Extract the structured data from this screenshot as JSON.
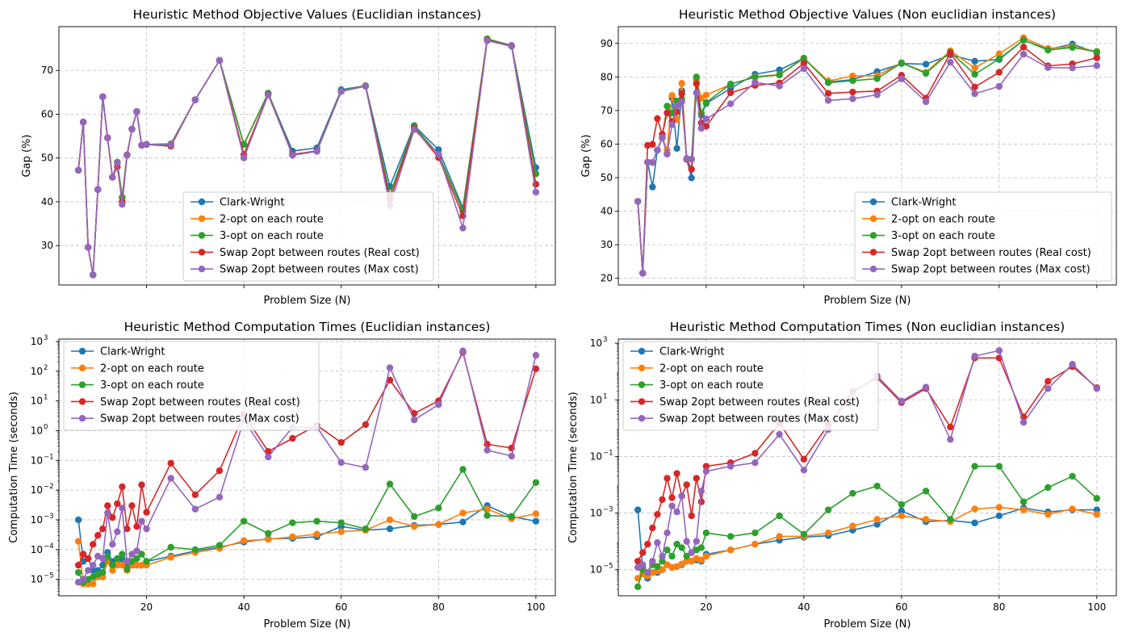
{
  "chart_data": [
    {
      "type": "line",
      "title": "Heuristic Method Objective Values (Euclidian instances)",
      "xlabel": "Problem Size (N)",
      "ylabel": "Gap (%)",
      "show_x_ticklabels": false,
      "xlim": [
        2,
        104
      ],
      "ylim": [
        21,
        80
      ],
      "yscale": "linear",
      "yticks": [
        30,
        40,
        50,
        60,
        70
      ],
      "ytick_labels": [
        "30",
        "40",
        "50",
        "60",
        "70"
      ],
      "xticks": [
        20,
        40,
        60,
        80,
        100
      ],
      "xtick_labels": [
        "",
        "",
        "",
        "",
        ""
      ],
      "grid": true,
      "legend": "lower-center",
      "x": [
        6,
        7,
        8,
        9,
        10,
        11,
        12,
        13,
        14,
        15,
        16,
        17,
        18,
        19,
        20,
        25,
        30,
        35,
        40,
        45,
        50,
        55,
        60,
        65,
        70,
        75,
        80,
        85,
        90,
        95,
        100
      ],
      "series": [
        {
          "name": "Clark-Wright",
          "color": "#1f77b4",
          "values": [
            47.2,
            58.2,
            29.6,
            23.3,
            42.8,
            64.0,
            54.6,
            45.6,
            49.0,
            41.0,
            50.7,
            56.6,
            60.6,
            52.9,
            53.1,
            53.2,
            63.3,
            72.3,
            53.1,
            64.8,
            51.6,
            52.3,
            65.6,
            66.5,
            43.5,
            57.4,
            51.9,
            38.6,
            77.2,
            75.7,
            47.8
          ]
        },
        {
          "name": "2-opt on each route",
          "color": "#ff7f0e",
          "values": [
            47.2,
            58.2,
            29.6,
            23.3,
            42.8,
            64.0,
            54.6,
            45.6,
            49.0,
            41.0,
            50.7,
            56.6,
            60.6,
            52.9,
            53.1,
            53.2,
            63.3,
            72.3,
            53.1,
            64.8,
            50.8,
            51.6,
            65.4,
            66.5,
            41.6,
            57.2,
            50.8,
            37.9,
            77.2,
            75.6,
            46.4
          ]
        },
        {
          "name": "3-opt on each route",
          "color": "#2ca02c",
          "values": [
            47.2,
            58.2,
            29.6,
            23.3,
            42.8,
            64.0,
            54.6,
            45.6,
            49.0,
            41.0,
            50.7,
            56.6,
            60.6,
            52.9,
            53.1,
            53.2,
            63.3,
            72.3,
            53.1,
            64.8,
            50.8,
            51.6,
            65.4,
            66.5,
            41.6,
            57.2,
            50.8,
            37.9,
            77.2,
            75.6,
            46.4
          ]
        },
        {
          "name": "Swap 2opt between routes (Real cost)",
          "color": "#d62728",
          "values": [
            47.2,
            58.2,
            29.6,
            23.3,
            42.8,
            64.0,
            54.6,
            45.6,
            48.0,
            40.0,
            50.7,
            56.6,
            60.6,
            52.9,
            53.1,
            52.7,
            63.3,
            72.3,
            50.8,
            64.5,
            50.8,
            51.6,
            65.2,
            66.4,
            40.5,
            56.8,
            50.1,
            36.8,
            76.9,
            75.6,
            44.0
          ]
        },
        {
          "name": "Swap 2opt between routes (Max cost)",
          "color": "#9467bd",
          "values": [
            47.2,
            58.2,
            29.6,
            23.3,
            42.8,
            64.0,
            54.6,
            45.6,
            48.9,
            39.4,
            50.6,
            56.6,
            60.6,
            52.9,
            53.1,
            53.0,
            63.3,
            72.3,
            50.0,
            64.4,
            50.6,
            51.5,
            65.2,
            66.4,
            39.1,
            56.5,
            50.8,
            34.0,
            76.8,
            75.5,
            42.2
          ]
        }
      ]
    },
    {
      "type": "line",
      "title": "Heuristic Method Objective Values (Non euclidian instances)",
      "xlabel": "Problem Size (N)",
      "ylabel": "Gap (%)",
      "show_x_ticklabels": false,
      "xlim": [
        2,
        104
      ],
      "ylim": [
        18,
        95
      ],
      "yscale": "linear",
      "yticks": [
        20,
        30,
        40,
        50,
        60,
        70,
        80,
        90
      ],
      "ytick_labels": [
        "20",
        "30",
        "40",
        "50",
        "60",
        "70",
        "80",
        "90"
      ],
      "xticks": [
        20,
        40,
        60,
        80,
        100
      ],
      "xtick_labels": [
        "",
        "",
        "",
        "",
        ""
      ],
      "grid": true,
      "legend": "lower-right",
      "x": [
        6,
        7,
        8,
        9,
        10,
        11,
        12,
        13,
        14,
        15,
        16,
        17,
        18,
        19,
        20,
        25,
        30,
        35,
        40,
        45,
        50,
        55,
        60,
        65,
        70,
        75,
        80,
        85,
        90,
        95,
        100
      ],
      "series": [
        {
          "name": "Clark-Wright",
          "color": "#1f77b4",
          "values": [
            42.9,
            21.5,
            54.6,
            47.2,
            58.2,
            61.8,
            57.2,
            73.8,
            58.7,
            75.9,
            55.5,
            49.9,
            79.1,
            68.6,
            72.1,
            76.6,
            80.8,
            82.1,
            85.6,
            78.5,
            79.2,
            81.6,
            84.0,
            83.8,
            86.6,
            84.7,
            85.2,
            91.0,
            88.2,
            89.8,
            87.2
          ]
        },
        {
          "name": "2-opt on each route",
          "color": "#ff7f0e",
          "values": [
            42.9,
            21.5,
            54.6,
            54.5,
            58.2,
            62.0,
            58.2,
            74.5,
            67.3,
            78.1,
            55.5,
            55.5,
            79.3,
            73.7,
            74.6,
            77.8,
            80.1,
            80.7,
            85.6,
            78.8,
            80.3,
            80.4,
            84.2,
            81.4,
            87.8,
            82.7,
            86.9,
            91.7,
            88.5,
            89.1,
            87.6
          ]
        },
        {
          "name": "3-opt on each route",
          "color": "#2ca02c",
          "values": [
            42.9,
            21.5,
            54.6,
            54.5,
            58.2,
            62.0,
            71.3,
            69.2,
            72.8,
            73.5,
            55.5,
            55.5,
            80.0,
            69.2,
            72.4,
            77.9,
            79.9,
            80.6,
            85.6,
            78.3,
            78.9,
            79.5,
            84.2,
            81.1,
            87.4,
            80.8,
            85.4,
            91.0,
            88.0,
            88.8,
            87.5
          ]
        },
        {
          "name": "Swap 2opt between routes (Real cost)",
          "color": "#d62728",
          "values": [
            42.9,
            21.5,
            59.6,
            59.9,
            67.6,
            62.9,
            69.3,
            66.8,
            69.6,
            75.0,
            55.5,
            52.5,
            78.0,
            66.3,
            65.3,
            75.3,
            77.5,
            78.2,
            84.1,
            75.1,
            75.5,
            75.8,
            80.5,
            73.7,
            87.1,
            77.0,
            81.4,
            88.9,
            83.3,
            83.9,
            85.7
          ]
        },
        {
          "name": "Swap 2opt between routes (Max cost)",
          "color": "#9467bd",
          "values": [
            42.9,
            21.5,
            54.6,
            54.5,
            58.2,
            62.0,
            57.0,
            65.8,
            71.4,
            72.6,
            55.7,
            55.5,
            75.3,
            64.7,
            67.5,
            72.0,
            78.4,
            77.3,
            82.5,
            73.0,
            73.5,
            74.7,
            79.4,
            72.6,
            84.4,
            75.0,
            77.2,
            86.8,
            82.8,
            82.7,
            83.4
          ]
        }
      ]
    },
    {
      "type": "line",
      "title": "Heuristic Method Computation Times (Euclidian instances)",
      "xlabel": "Problem Size (N)",
      "ylabel": "Computation Time (seconds)",
      "show_x_ticklabels": true,
      "xlim": [
        2,
        104
      ],
      "ylim": [
        2.8e-06,
        1200
      ],
      "yscale": "log",
      "yticks": [
        1e-05,
        0.0001,
        0.001,
        0.01,
        0.1,
        1,
        10,
        100,
        1000
      ],
      "ytick_labels": [
        "10",
        "10",
        "10",
        "10",
        "10",
        "10",
        "10",
        "10",
        "10"
      ],
      "ytick_exponents": [
        "−5",
        "−4",
        "−3",
        "−2",
        "−1",
        "0",
        "1",
        "2",
        "3"
      ],
      "xticks": [
        20,
        40,
        60,
        80,
        100
      ],
      "xtick_labels": [
        "20",
        "40",
        "60",
        "80",
        "100"
      ],
      "grid": true,
      "legend": "upper-left",
      "x": [
        6,
        7,
        8,
        9,
        10,
        11,
        12,
        13,
        14,
        15,
        16,
        17,
        18,
        19,
        20,
        25,
        30,
        35,
        40,
        45,
        50,
        55,
        60,
        65,
        70,
        75,
        80,
        85,
        90,
        95,
        100
      ],
      "series": [
        {
          "name": "Clark-Wright",
          "color": "#1f77b4",
          "values": [
            0.001,
            4e-05,
            5e-05,
            2e-05,
            2e-05,
            3e-05,
            8e-05,
            4e-05,
            3e-05,
            5e-05,
            3e-05,
            3e-05,
            3e-05,
            3e-05,
            4e-05,
            6e-05,
            9e-05,
            0.00012,
            0.00018,
            0.00023,
            0.00024,
            0.00027,
            0.0006,
            0.00045,
            0.0005,
            0.00065,
            0.0007,
            0.00085,
            0.003,
            0.0013,
            0.0009
          ]
        },
        {
          "name": "2-opt on each route",
          "color": "#ff7f0e",
          "values": [
            0.00019,
            7e-06,
            7e-06,
            7e-06,
            1.2e-05,
            1.2e-05,
            4e-05,
            2e-05,
            3e-05,
            3e-05,
            2e-05,
            3e-05,
            3e-05,
            3e-05,
            3e-05,
            5.5e-05,
            8e-05,
            0.00011,
            0.0002,
            0.00022,
            0.00027,
            0.00033,
            0.0004,
            0.00045,
            0.001,
            0.0006,
            0.0007,
            0.0017,
            0.0023,
            0.0011,
            0.0016
          ]
        },
        {
          "name": "3-opt on each route",
          "color": "#2ca02c",
          "values": [
            1.7e-05,
            8e-06,
            1e-05,
            1.2e-05,
            1.5e-05,
            1.7e-05,
            6e-05,
            3e-05,
            5e-05,
            7e-05,
            2.2e-05,
            4e-05,
            5e-05,
            7e-05,
            4e-05,
            0.00012,
            0.0001,
            0.00014,
            0.0009,
            0.00035,
            0.0008,
            0.0009,
            0.0008,
            0.0005,
            0.016,
            0.0013,
            0.0025,
            0.05,
            0.0014,
            0.0013,
            0.018
          ]
        },
        {
          "name": "Swap 2opt between routes (Real cost)",
          "color": "#d62728",
          "values": [
            3e-05,
            7e-05,
            5e-05,
            0.00015,
            0.0003,
            0.0005,
            0.003,
            0.0012,
            0.0035,
            0.013,
            0.0005,
            0.003,
            0.0006,
            0.015,
            0.0018,
            0.08,
            0.007,
            0.045,
            3.5,
            0.2,
            0.55,
            1.5,
            0.4,
            1.6,
            50,
            3.8,
            10,
            430,
            0.35,
            0.26,
            120
          ]
        },
        {
          "name": "Swap 2opt between routes (Max cost)",
          "color": "#9467bd",
          "values": [
            8e-06,
            1e-05,
            2e-05,
            3e-05,
            6e-05,
            5e-05,
            0.0017,
            0.00015,
            0.0004,
            0.0025,
            4e-05,
            7e-05,
            9e-05,
            0.0009,
            0.0005,
            0.025,
            0.0023,
            0.0058,
            2.3,
            0.13,
            1.3,
            1.3,
            0.085,
            0.058,
            130,
            2.3,
            7.5,
            480,
            0.22,
            0.14,
            340
          ]
        }
      ]
    },
    {
      "type": "line",
      "title": "Heuristic Method Computation Times (Non euclidian instances)",
      "xlabel": "Problem Size (N)",
      "ylabel": "Computation Time (seconds)",
      "show_x_ticklabels": true,
      "xlim": [
        2,
        104
      ],
      "ylim": [
        1.2e-06,
        1400
      ],
      "yscale": "log",
      "yticks": [
        1e-05,
        0.001,
        0.1,
        10,
        1000
      ],
      "ytick_labels": [
        "10",
        "10",
        "10",
        "10",
        "10"
      ],
      "ytick_exponents": [
        "−5",
        "−3",
        "−1",
        "1",
        "3"
      ],
      "xticks": [
        20,
        40,
        60,
        80,
        100
      ],
      "xtick_labels": [
        "20",
        "40",
        "60",
        "80",
        "100"
      ],
      "grid": true,
      "legend": "upper-left",
      "x": [
        6,
        7,
        8,
        9,
        10,
        11,
        12,
        13,
        14,
        15,
        16,
        17,
        18,
        19,
        20,
        25,
        30,
        35,
        40,
        45,
        50,
        55,
        60,
        65,
        70,
        75,
        80,
        85,
        90,
        95,
        100
      ],
      "series": [
        {
          "name": "Clark-Wright",
          "color": "#1f77b4",
          "values": [
            0.0013,
            1.2e-05,
            5e-06,
            8e-06,
            8e-06,
            1e-05,
            1.5e-05,
            1.2e-05,
            1.3e-05,
            1.5e-05,
            2e-05,
            2e-05,
            2.2e-05,
            2e-05,
            3.5e-05,
            5e-05,
            8e-05,
            0.00011,
            0.00014,
            0.00016,
            0.00025,
            0.0004,
            0.0012,
            0.0005,
            0.00055,
            0.00045,
            0.0008,
            0.0015,
            0.0011,
            0.0013,
            0.0013
          ]
        },
        {
          "name": "2-opt on each route",
          "color": "#ff7f0e",
          "values": [
            5e-06,
            7e-06,
            6e-06,
            8e-06,
            9e-06,
            1e-05,
            1.5e-05,
            1.2e-05,
            1.3e-05,
            1.6e-05,
            2e-05,
            2e-05,
            2.5e-05,
            2.2e-05,
            3e-05,
            5e-05,
            8e-05,
            0.00015,
            0.00015,
            0.0002,
            0.00035,
            0.0006,
            0.0008,
            0.0006,
            0.0005,
            0.0014,
            0.0016,
            0.0013,
            0.0009,
            0.0014,
            0.0009
          ]
        },
        {
          "name": "3-opt on each route",
          "color": "#2ca02c",
          "values": [
            2.5e-06,
            1e-05,
            8e-06,
            1.5e-05,
            1.3e-05,
            2e-05,
            5e-05,
            3e-05,
            8e-05,
            6e-05,
            3e-05,
            4e-05,
            5e-05,
            6e-05,
            0.0002,
            0.00015,
            0.0002,
            0.0008,
            0.00018,
            0.0013,
            0.005,
            0.009,
            0.002,
            0.006,
            0.0006,
            0.045,
            0.045,
            0.0025,
            0.008,
            0.02,
            0.0033
          ]
        },
        {
          "name": "Swap 2opt between routes (Real cost)",
          "color": "#d62728",
          "values": [
            2e-05,
            4e-05,
            8e-05,
            0.0003,
            0.0009,
            0.003,
            0.017,
            0.0035,
            0.025,
            0.004,
            0.01,
            0.0008,
            0.017,
            0.0025,
            0.045,
            0.06,
            0.13,
            1.5,
            0.08,
            1.3,
            20,
            60,
            8,
            25,
            1.1,
            300,
            300,
            2.5,
            45,
            150,
            27
          ]
        },
        {
          "name": "Swap 2opt between routes (Max cost)",
          "color": "#9467bd",
          "values": [
            1.2e-05,
            1.5e-05,
            8e-06,
            2e-05,
            9e-05,
            3e-05,
            0.0002,
            0.0018,
            0.0011,
            0.004,
            0.0001,
            4e-05,
            0.0001,
            0.006,
            0.03,
            0.045,
            0.06,
            0.6,
            0.033,
            0.9,
            18,
            70,
            9,
            28,
            0.4,
            350,
            550,
            1.6,
            25,
            180,
            25
          ]
        }
      ]
    }
  ]
}
